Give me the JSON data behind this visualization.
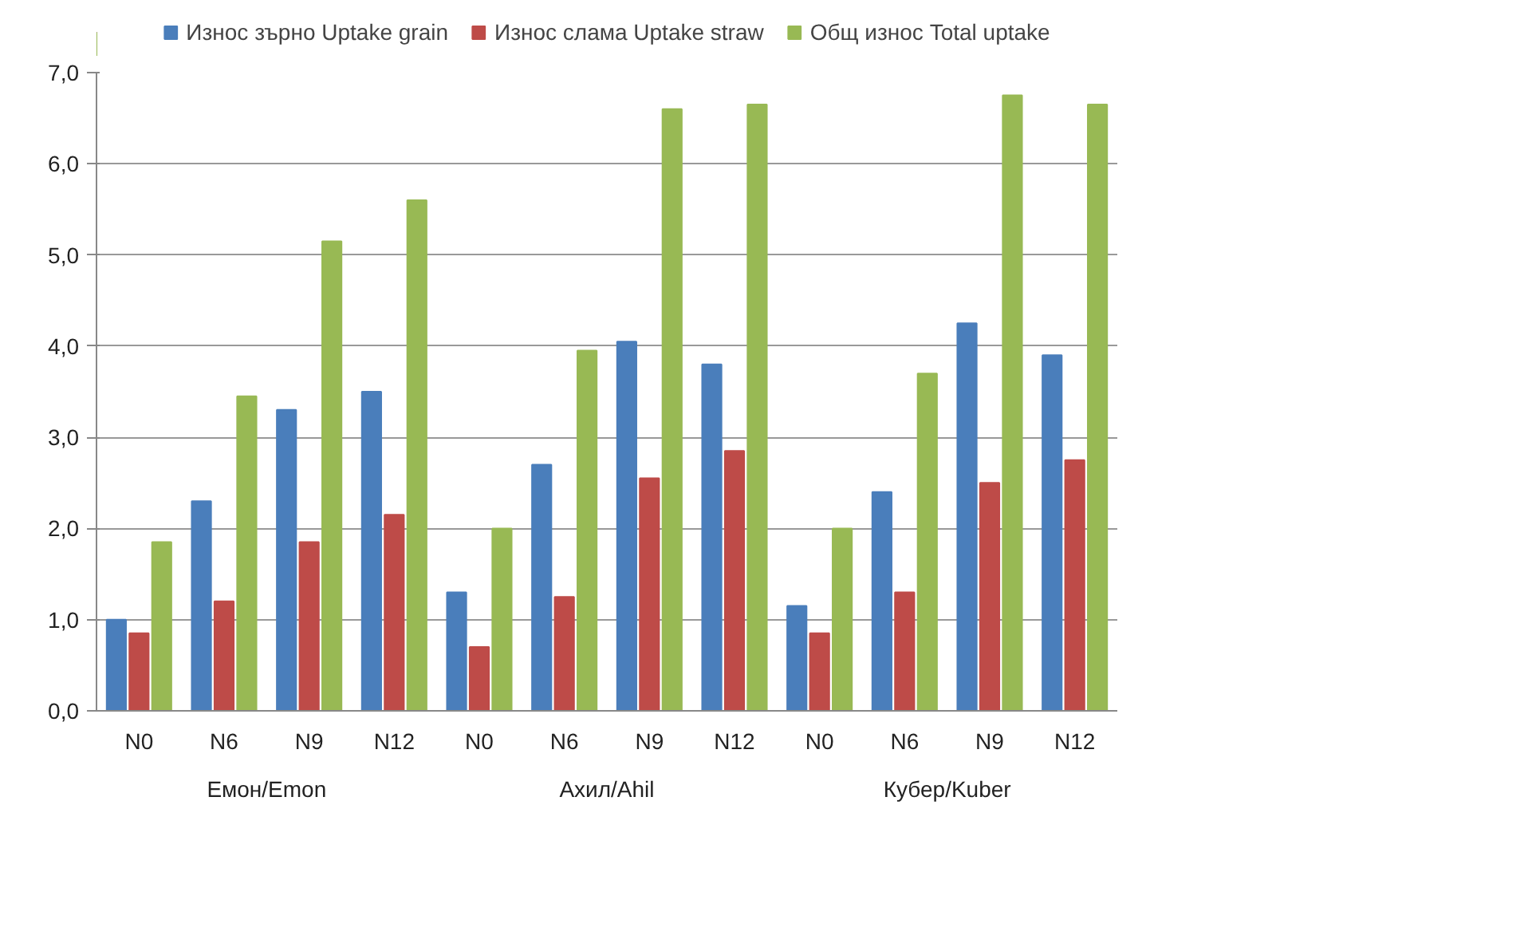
{
  "chart_data": {
    "type": "bar",
    "categories": [
      "N0",
      "N6",
      "N9",
      "N12",
      "N0",
      "N6",
      "N9",
      "N12",
      "N0",
      "N6",
      "N9",
      "N12"
    ],
    "annotations": [
      "Емон/Emon",
      "Ахил/Ahil",
      "Кубер/Kuber"
    ],
    "series": [
      {
        "name": "Износ зърно Uptake grain",
        "color": "#4a7ebb",
        "values": [
          1.0,
          2.3,
          3.3,
          3.5,
          1.3,
          2.7,
          4.05,
          3.8,
          1.15,
          2.4,
          4.25,
          3.9
        ]
      },
      {
        "name": "Износ слама Uptake straw",
        "color": "#be4b48",
        "values": [
          0.85,
          1.2,
          1.85,
          2.15,
          0.7,
          1.25,
          2.55,
          2.85,
          0.85,
          1.3,
          2.5,
          2.75
        ]
      },
      {
        "name": "Общ износ Total uptake",
        "color": "#98b954",
        "values": [
          1.85,
          3.45,
          5.15,
          5.6,
          2.0,
          3.95,
          6.6,
          6.65,
          2.0,
          3.7,
          6.75,
          6.65
        ]
      }
    ],
    "ylim": [
      0,
      7
    ],
    "yticks": [
      {
        "value": 0,
        "label": "0,0"
      },
      {
        "value": 1,
        "label": "1,0"
      },
      {
        "value": 2,
        "label": "2,0"
      },
      {
        "value": 3,
        "label": "3,0"
      },
      {
        "value": 4,
        "label": "4,0"
      },
      {
        "value": 5,
        "label": "5,0"
      },
      {
        "value": 6,
        "label": "6,0"
      },
      {
        "value": 7,
        "label": "7,0"
      }
    ],
    "grid": "y",
    "legend": "top"
  }
}
